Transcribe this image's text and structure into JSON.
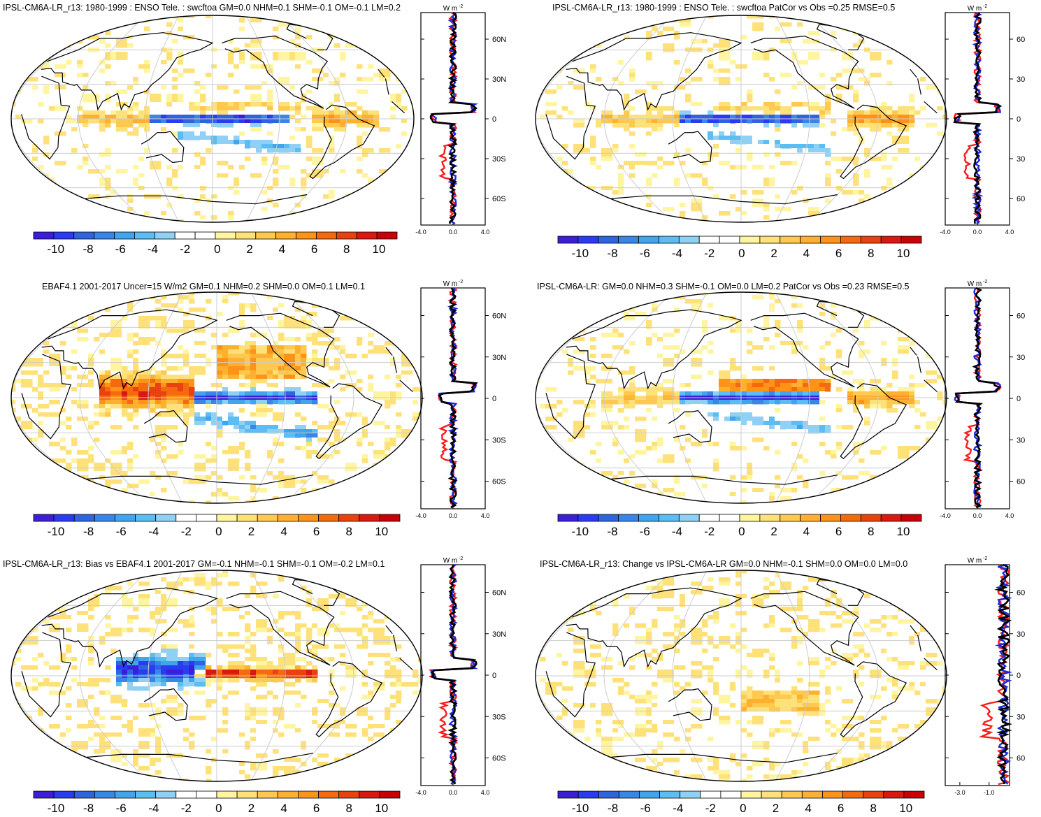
{
  "panels": [
    {
      "title": "IPSL-CM6A-LR_r13: 1980-1999 : ENSO Tele. : swcftoa GM=0.0 NHM=0.1 SHM=-0.1 OM=-0.1 LM=0.2",
      "profile_unit": "W m",
      "profile_unit_sup": "-2",
      "lat_ticks": [
        "60N",
        "30N",
        "0",
        "30S",
        "60S"
      ],
      "x_ticks": [
        "-4.0",
        "0.0",
        "4.0"
      ],
      "colorbar_labels": [
        "-10",
        "-8",
        "-6",
        "-4",
        "-2",
        "0",
        "2",
        "4",
        "6",
        "8",
        "10"
      ]
    },
    {
      "title": "IPSL-CM6A-LR_r13: 1980-1999 : ENSO Tele. : swcftoa PatCor vs Obs =0.25 RMSE=0.5",
      "profile_unit": "W m",
      "profile_unit_sup": "-2",
      "lat_ticks": [
        "60",
        "30",
        "0",
        "30",
        "60"
      ],
      "x_ticks": [
        "-4.0",
        "0.0",
        "4.0"
      ],
      "colorbar_labels": [
        "-10",
        "-8",
        "-6",
        "-4",
        "-2",
        "0",
        "2",
        "4",
        "6",
        "8",
        "10"
      ]
    },
    {
      "title": "EBAF4.1 2001-2017 Uncer=15 W/m2 GM=0.1 NHM=0.2 SHM=0.0 OM=0.1 LM=0.1",
      "profile_unit": "W m",
      "profile_unit_sup": "-2",
      "lat_ticks": [
        "60N",
        "30N",
        "0",
        "30S",
        "60S"
      ],
      "x_ticks": [
        "-4.0",
        "0.0",
        "4.0"
      ],
      "colorbar_labels": [
        "-10",
        "-8",
        "-6",
        "-4",
        "-2",
        "0",
        "2",
        "4",
        "6",
        "8",
        "10"
      ]
    },
    {
      "title": "IPSL-CM6A-LR: GM=0.0 NHM=0.3 SHM=-0.1 OM=0.0 LM=0.2 PatCor vs Obs =0.23 RMSE=0.5",
      "profile_unit": "W m",
      "profile_unit_sup": "-2",
      "lat_ticks": [
        "60",
        "30",
        "0",
        "30",
        "60"
      ],
      "x_ticks": [
        "-4.0",
        "0.0",
        "4.0"
      ],
      "colorbar_labels": [
        "-10",
        "-8",
        "-6",
        "-4",
        "-2",
        "0",
        "2",
        "4",
        "6",
        "8",
        "10"
      ]
    },
    {
      "title": "IPSL-CM6A-LR_r13: Bias vs EBAF4.1 2001-2017 GM=-0.1 NHM=-0.1 SHM=-0.1 OM=-0.2 LM=0.1",
      "profile_unit": "W m",
      "profile_unit_sup": "-2",
      "lat_ticks": [
        "60N",
        "30N",
        "0",
        "30S",
        "60S"
      ],
      "x_ticks": [
        "-4.0",
        "0.0",
        "4.0"
      ],
      "colorbar_labels": [
        "-10",
        "-8",
        "-6",
        "-4",
        "-2",
        "0",
        "2",
        "4",
        "6",
        "8",
        "10"
      ]
    },
    {
      "title": "IPSL-CM6A-LR_r13: Change vs IPSL-CM6A-LR GM=0.0 NHM=-0.1 SHM=0.0 OM=0.0 LM=0.0",
      "profile_unit": "W m",
      "profile_unit_sup": "-2",
      "lat_ticks": [
        "60",
        "30",
        "0",
        "30",
        "60"
      ],
      "x_ticks": [
        "-3.0",
        "-1.0"
      ],
      "colorbar_labels": [
        "-10",
        "-8",
        "-6",
        "-4",
        "-2",
        "0",
        "2",
        "4",
        "6",
        "8",
        "10"
      ]
    }
  ],
  "colors": {
    "palette": [
      "#3a1fd6",
      "#2b3bf2",
      "#2f63e0",
      "#3a86e8",
      "#43a4ee",
      "#5cbdf2",
      "#8fd0f4",
      "#ffffff",
      "#ffffff",
      "#fff4a0",
      "#ffe17a",
      "#ffc84e",
      "#ffb02e",
      "#ff9318",
      "#f56a0e",
      "#e84210",
      "#d9180f",
      "#c8000a"
    ],
    "line_model": "#ff1a1a",
    "line_obs": "#1a2ad6",
    "line_diff": "#000000",
    "graticule": "#cccccc"
  },
  "chart_data": [
    {
      "type": "heatmap",
      "title": "IPSL-CM6A-LR_r13: 1980-1999 : ENSO Tele. : swcftoa GM=0.0 NHM=0.1 SHM=-0.1 OM=-0.1 LM=0.2",
      "projection": "robinson",
      "colorbar_range": [
        -11,
        11
      ],
      "units": "W m-2",
      "zonal_profile": {
        "xlim": [
          -4,
          4
        ],
        "lat_range": [
          -80,
          80
        ],
        "series": [
          "red",
          "blue",
          "black"
        ]
      }
    },
    {
      "type": "heatmap",
      "title": "IPSL-CM6A-LR_r13: 1980-1999 : ENSO Tele. : swcftoa PatCor vs Obs =0.25 RMSE=0.5",
      "projection": "robinson",
      "colorbar_range": [
        -11,
        11
      ],
      "units": "W m-2",
      "zonal_profile": {
        "xlim": [
          -4,
          4
        ],
        "lat_range": [
          -80,
          80
        ],
        "series": [
          "red",
          "blue",
          "black"
        ]
      }
    },
    {
      "type": "heatmap",
      "title": "EBAF4.1 2001-2017 Uncer=15 W/m2 GM=0.1 NHM=0.2 SHM=0.0 OM=0.1 LM=0.1",
      "projection": "robinson",
      "colorbar_range": [
        -11,
        11
      ],
      "units": "W m-2",
      "zonal_profile": {
        "xlim": [
          -4,
          4
        ],
        "lat_range": [
          -80,
          80
        ],
        "series": [
          "red",
          "blue",
          "black"
        ]
      }
    },
    {
      "type": "heatmap",
      "title": "IPSL-CM6A-LR: GM=0.0 NHM=0.3 SHM=-0.1 OM=0.0 LM=0.2 PatCor vs Obs =0.23 RMSE=0.5",
      "projection": "robinson",
      "colorbar_range": [
        -11,
        11
      ],
      "units": "W m-2",
      "zonal_profile": {
        "xlim": [
          -4,
          4
        ],
        "lat_range": [
          -80,
          80
        ],
        "series": [
          "red",
          "blue",
          "black"
        ]
      }
    },
    {
      "type": "heatmap",
      "title": "IPSL-CM6A-LR_r13: Bias vs EBAF4.1 2001-2017 GM=-0.1 NHM=-0.1 SHM=-0.1 OM=-0.2 LM=0.1",
      "projection": "robinson",
      "colorbar_range": [
        -11,
        11
      ],
      "units": "W m-2",
      "zonal_profile": {
        "xlim": [
          -4,
          4
        ],
        "lat_range": [
          -80,
          80
        ],
        "series": [
          "red",
          "blue",
          "black"
        ]
      }
    },
    {
      "type": "heatmap",
      "title": "IPSL-CM6A-LR_r13: Change vs IPSL-CM6A-LR GM=0.0 NHM=-0.1 SHM=0.0 OM=0.0 LM=0.0",
      "projection": "robinson",
      "colorbar_range": [
        -11,
        11
      ],
      "units": "W m-2",
      "zonal_profile": {
        "xlim": [
          -4,
          0.4
        ],
        "lat_range": [
          -80,
          80
        ],
        "series": [
          "red",
          "blue",
          "black"
        ]
      }
    }
  ]
}
